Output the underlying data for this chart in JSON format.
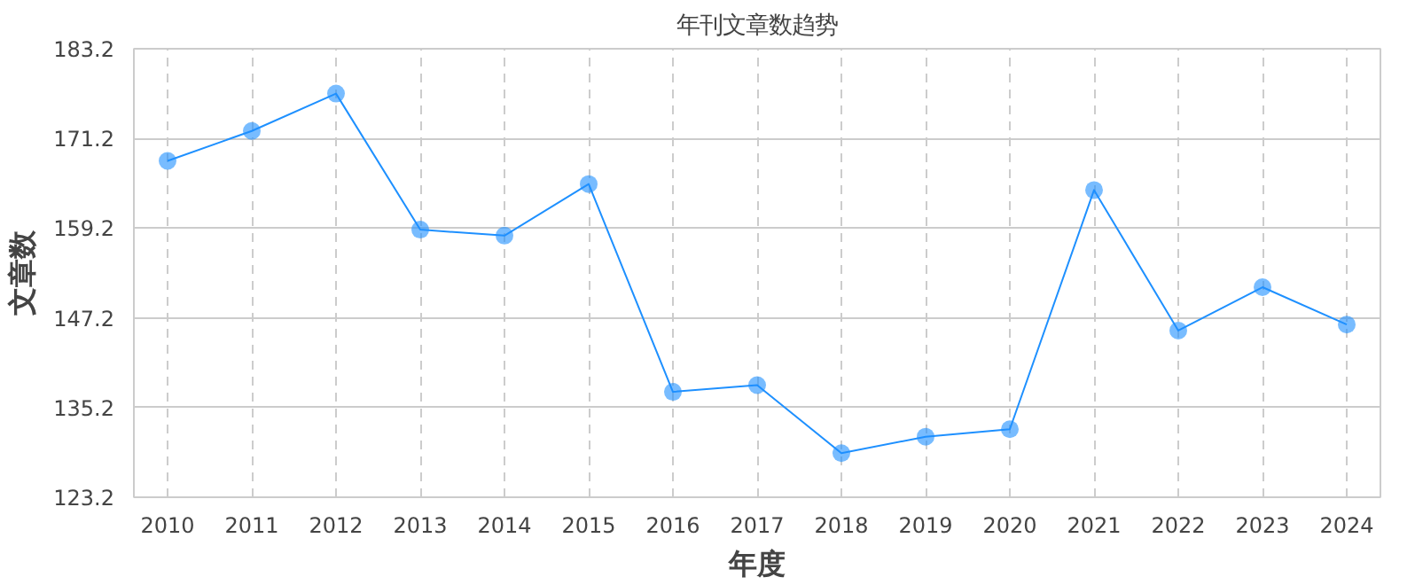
{
  "chart_data": {
    "type": "line",
    "title": "年刊文章数趋势",
    "xlabel": "年度",
    "ylabel": "文章数",
    "x": [
      2010,
      2011,
      2012,
      2013,
      2014,
      2015,
      2016,
      2017,
      2018,
      2019,
      2020,
      2021,
      2022,
      2023,
      2024
    ],
    "series": [
      {
        "color": "#1e90ff",
        "values": [
          168.2,
          172.2,
          177.2,
          159.0,
          158.2,
          165.1,
          137.3,
          138.2,
          129.1,
          131.3,
          132.3,
          164.3,
          145.5,
          151.3,
          146.3
        ]
      }
    ],
    "xlim": [
      2009.6,
      2024.4
    ],
    "xticks": [
      2010,
      2011,
      2012,
      2013,
      2014,
      2015,
      2016,
      2017,
      2018,
      2019,
      2020,
      2021,
      2022,
      2023,
      2024
    ],
    "ylim": [
      123.2,
      183.2
    ],
    "yticks": [
      123.2,
      135.2,
      147.2,
      159.2,
      171.2,
      183.2
    ],
    "grid": true,
    "marker": "circle",
    "line_style": "solid"
  }
}
